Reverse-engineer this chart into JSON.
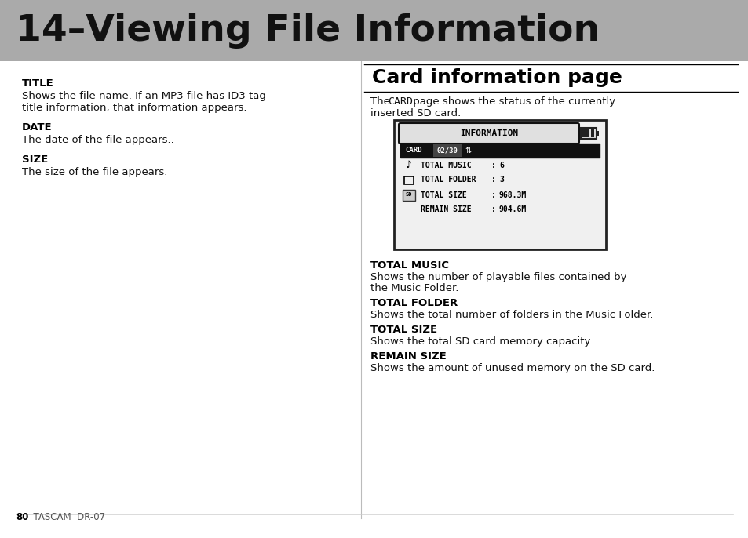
{
  "title": "14–Viewing File Information",
  "title_bg": "#aaaaaa",
  "title_color": "#111111",
  "page_bg": "#ffffff",
  "left_column": {
    "sections": [
      {
        "heading": "TITLE",
        "body": "Shows the file name. If an MP3 file has ID3 tag\ntitle information, that information appears."
      },
      {
        "heading": "DATE",
        "body": "The date of the file appears.."
      },
      {
        "heading": "SIZE",
        "body": "The size of the file appears."
      }
    ]
  },
  "right_column": {
    "section_title": "Card information page",
    "intro_before_card": "The ",
    "intro_card": "CARD",
    "intro_after_card": " page shows the status of the currently",
    "intro_line2": "inserted SD card.",
    "sections": [
      {
        "heading": "TOTAL MUSIC",
        "body": "Shows the number of playable files contained by\nthe Music Folder."
      },
      {
        "heading": "TOTAL FOLDER",
        "body": "Shows the total number of folders in the Music Folder."
      },
      {
        "heading": "TOTAL SIZE",
        "body": "Shows the total SD card memory capacity."
      },
      {
        "heading": "REMAIN SIZE",
        "body": "Shows the amount of unused memory on the SD card."
      }
    ]
  },
  "footer_bold": "80",
  "footer_normal": "  TASCAM  DR-07",
  "heading_fontsize": 9.5,
  "body_fontsize": 9.5,
  "section_title_fontsize": 18
}
